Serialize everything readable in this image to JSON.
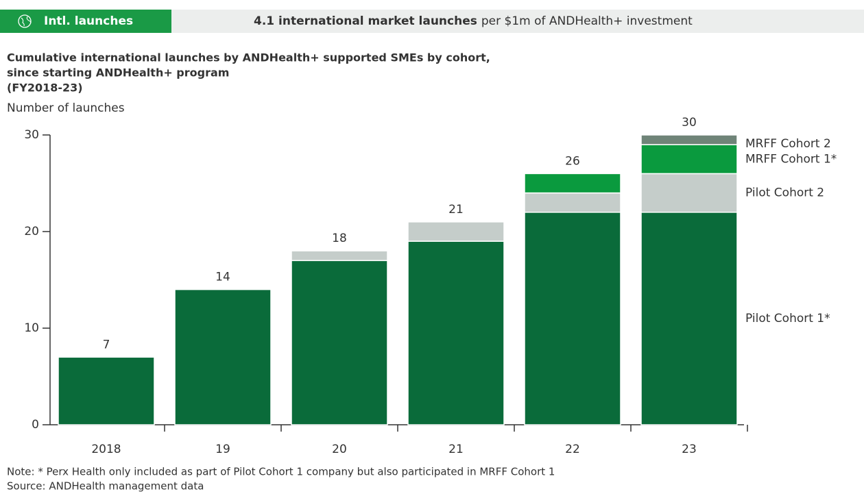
{
  "header": {
    "tag": "Intl. launches",
    "headline_bold": "4.1 international market launches",
    "headline_rest": "per $1m of ANDHealth+ investment"
  },
  "chart_data": {
    "type": "stacked-bar",
    "title": [
      "Cumulative international launches by ANDHealth+ supported SMEs by cohort,",
      "since starting ANDHealth+ program",
      "(FY2018-23)"
    ],
    "ylabel": "Number of launches",
    "categories": [
      "2018",
      "19",
      "20",
      "21",
      "22",
      "23"
    ],
    "series": [
      {
        "name": "Pilot Cohort 1*",
        "color": "#0a6b3a",
        "values": [
          7,
          14,
          17,
          19,
          22,
          22
        ]
      },
      {
        "name": "Pilot Cohort 2",
        "color": "#c5cdca",
        "values": [
          0,
          0,
          1,
          2,
          2,
          4
        ]
      },
      {
        "name": "MRFF Cohort 1*",
        "color": "#0a9a3e",
        "values": [
          0,
          0,
          0,
          0,
          2,
          3
        ]
      },
      {
        "name": "MRFF Cohort 2",
        "color": "#6f8478",
        "values": [
          0,
          0,
          0,
          0,
          0,
          1
        ]
      }
    ],
    "totals": [
      7,
      14,
      18,
      21,
      26,
      30
    ],
    "ylim": [
      0,
      30
    ],
    "yticks": [
      0,
      10,
      20,
      30
    ]
  },
  "notes": [
    "Note: * Perx Health only included as part of Pilot Cohort 1 company but also participated in MRFF Cohort 1",
    "Source: ANDHealth management data"
  ]
}
